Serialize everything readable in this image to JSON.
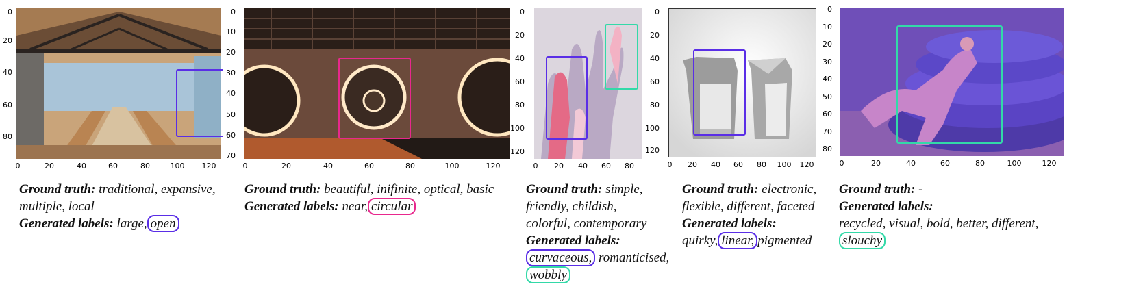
{
  "label_prefix": {
    "ground_truth": "Ground truth:",
    "generated": "Generated labels:"
  },
  "colors": {
    "purple": "#5a2ee6",
    "pink": "#e8288d",
    "teal": "#33d9a8"
  },
  "panels": [
    {
      "yticks": [
        "0",
        "20",
        "40",
        "60",
        "80"
      ],
      "xticks": [
        "0",
        "20",
        "40",
        "60",
        "80",
        "100",
        "120"
      ],
      "gt1": "traditional, expansive,",
      "gt2": "multiple, local",
      "gen_plain": "large,",
      "gen_hl": "open"
    },
    {
      "yticks": [
        "0",
        "10",
        "20",
        "30",
        "40",
        "50",
        "60",
        "70"
      ],
      "xticks": [
        "0",
        "20",
        "40",
        "60",
        "80",
        "100",
        "120"
      ],
      "gt1": "beautiful, inifinite, optical, basic",
      "gen_plain": "near,",
      "gen_hl": "circular"
    },
    {
      "yticks": [
        "0",
        "20",
        "40",
        "60",
        "80",
        "100",
        "120"
      ],
      "xticks": [
        "0",
        "20",
        "40",
        "60",
        "80"
      ],
      "gt1": "simple,",
      "gt2": "friendly, childish,",
      "gt3": "colorful, contemporary",
      "gen_hl1": "curvaceous,",
      "gen_plain": "romanticised,",
      "gen_hl2": "wobbly"
    },
    {
      "yticks": [
        "0",
        "20",
        "40",
        "60",
        "80",
        "100",
        "120"
      ],
      "xticks": [
        "0",
        "20",
        "40",
        "60",
        "80",
        "100",
        "120"
      ],
      "gt1": "electronic,",
      "gt2": "flexible, different, faceted",
      "gen_plain1": "quirky,",
      "gen_hl": "linear,",
      "gen_plain2": "pigmented"
    },
    {
      "yticks": [
        "0",
        "10",
        "20",
        "30",
        "40",
        "50",
        "60",
        "70",
        "80"
      ],
      "xticks": [
        "0",
        "20",
        "40",
        "60",
        "80",
        "100",
        "120"
      ],
      "gt1": "-",
      "gen_line": "recycled, visual, bold, better, different,",
      "gen_hl": "slouchy"
    }
  ]
}
